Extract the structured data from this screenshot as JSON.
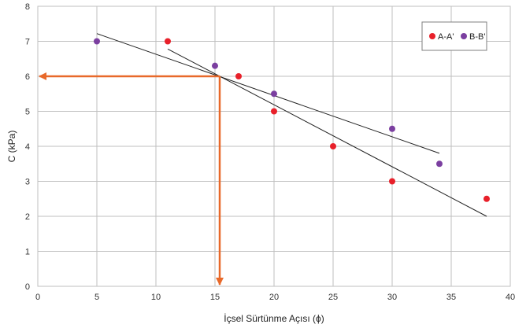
{
  "chart_data": {
    "type": "scatter",
    "xlabel": "İçsel Sürtünme Açısı (ϕ)",
    "ylabel": "C (kPa)",
    "xlim": [
      0,
      40
    ],
    "ylim": [
      0,
      8
    ],
    "x_ticks": [
      "0",
      "5",
      "10",
      "15",
      "20",
      "25",
      "30",
      "35",
      "40"
    ],
    "y_ticks": [
      "0",
      "1",
      "2",
      "3",
      "4",
      "5",
      "6",
      "7",
      "8"
    ],
    "grid": true,
    "legend_position": "top-right",
    "series": [
      {
        "name": "A-A'",
        "color": "#e8202a",
        "points": [
          [
            11,
            7
          ],
          [
            17,
            6
          ],
          [
            20,
            5
          ],
          [
            25,
            4
          ],
          [
            30,
            3
          ],
          [
            38,
            2.5
          ]
        ]
      },
      {
        "name": "B-B'",
        "color": "#7b3fa0",
        "points": [
          [
            5,
            7
          ],
          [
            15,
            6.3
          ],
          [
            20,
            5.5
          ],
          [
            30,
            4.5
          ],
          [
            34,
            3.5
          ]
        ]
      }
    ],
    "trendlines": [
      {
        "from": [
          5,
          7.22
        ],
        "to": [
          34,
          3.8
        ],
        "color": "#222222"
      },
      {
        "from": [
          11,
          6.78
        ],
        "to": [
          38,
          2.0
        ],
        "color": "#222222"
      }
    ],
    "annotations": {
      "color": "#e8692a",
      "intersection": [
        15.4,
        6.0
      ],
      "arrow_to_y_axis": {
        "from": [
          15.4,
          6.0
        ],
        "to": [
          0,
          6.0
        ]
      },
      "arrow_to_x_axis": {
        "from": [
          15.4,
          6.0
        ],
        "to": [
          15.4,
          0
        ]
      }
    }
  }
}
